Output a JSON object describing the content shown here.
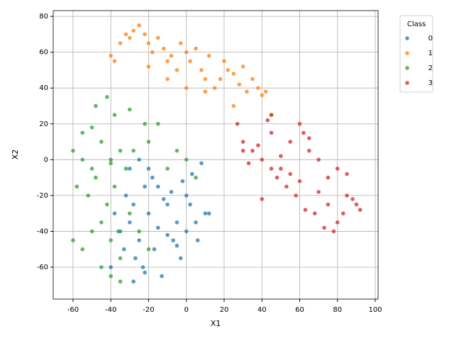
{
  "chart_data": {
    "type": "scatter",
    "xlabel": "X1",
    "ylabel": "X2",
    "xlim": [
      -70.5,
      101.5
    ],
    "ylim": [
      -77.8,
      83.2
    ],
    "xticks": [
      -60,
      -40,
      -20,
      0,
      20,
      40,
      60,
      80,
      100
    ],
    "yticks": [
      -60,
      -40,
      -20,
      0,
      20,
      40,
      60,
      80
    ],
    "grid": true,
    "legend_title": "Class",
    "legend_position": "outside-upper-right",
    "series": [
      {
        "name": "0",
        "color": "#1f77b4",
        "x": [
          -35,
          -30,
          -25,
          -20,
          -15,
          -10,
          -5,
          0,
          5,
          10,
          -32,
          -28,
          -22,
          -18,
          -12,
          -8,
          -2,
          3,
          8,
          -38,
          -33,
          -27,
          -23,
          -17,
          -13,
          -7,
          -3,
          2,
          -30,
          -25,
          -20,
          -15,
          -10,
          -5,
          0,
          -28,
          -22,
          -40,
          12,
          6
        ],
        "values": [
          -40,
          -35,
          -45,
          -30,
          -38,
          -42,
          -48,
          -40,
          -35,
          -30,
          -20,
          -25,
          -15,
          -10,
          -22,
          -18,
          -12,
          -8,
          -2,
          -30,
          -50,
          -55,
          -60,
          -50,
          -65,
          -45,
          -55,
          -25,
          -5,
          0,
          -5,
          -15,
          -25,
          -35,
          -20,
          -68,
          -63,
          -60,
          -30,
          -45
        ]
      },
      {
        "name": "1",
        "color": "#ff7f0e",
        "x": [
          -40,
          -35,
          -32,
          -30,
          -28,
          -25,
          -22,
          -20,
          -18,
          -15,
          -12,
          -10,
          -8,
          -5,
          -3,
          0,
          2,
          5,
          8,
          10,
          12,
          15,
          18,
          20,
          22,
          25,
          28,
          30,
          32,
          35,
          38,
          40,
          42,
          -38,
          -20,
          -10,
          0,
          10,
          25,
          45
        ],
        "values": [
          58,
          65,
          70,
          68,
          72,
          75,
          70,
          65,
          60,
          68,
          62,
          55,
          58,
          50,
          65,
          60,
          55,
          62,
          50,
          45,
          58,
          40,
          45,
          55,
          50,
          48,
          42,
          52,
          38,
          45,
          40,
          36,
          38,
          55,
          52,
          45,
          40,
          38,
          30,
          25
        ]
      },
      {
        "name": "2",
        "color": "#2ca02c",
        "x": [
          -60,
          -55,
          -50,
          -45,
          -40,
          -35,
          -58,
          -52,
          -48,
          -42,
          -38,
          -32,
          -28,
          -60,
          -55,
          -50,
          -45,
          -40,
          -35,
          -30,
          -25,
          -20,
          -45,
          -40,
          -35,
          -48,
          -42,
          -38,
          -30,
          -22,
          -15,
          -10,
          -5,
          0,
          5,
          -55,
          -50,
          -40,
          -36,
          -20
        ],
        "values": [
          5,
          0,
          -5,
          10,
          0,
          5,
          -15,
          -20,
          -10,
          -25,
          -15,
          -5,
          5,
          -45,
          -50,
          -40,
          -35,
          -45,
          -55,
          -30,
          -40,
          -50,
          -60,
          -65,
          -68,
          30,
          35,
          25,
          28,
          20,
          20,
          -5,
          5,
          0,
          -10,
          15,
          18,
          -2,
          -40,
          10
        ]
      },
      {
        "name": "3",
        "color": "#d62728",
        "x": [
          27,
          30,
          35,
          40,
          45,
          50,
          55,
          60,
          65,
          70,
          75,
          80,
          85,
          90,
          33,
          38,
          43,
          48,
          53,
          58,
          63,
          68,
          73,
          78,
          83,
          88,
          45,
          50,
          55,
          60,
          65,
          70,
          75,
          80,
          40,
          45,
          85,
          92,
          30,
          62
        ],
        "values": [
          20,
          10,
          5,
          0,
          15,
          -5,
          10,
          20,
          5,
          0,
          -10,
          -5,
          -20,
          -25,
          -2,
          8,
          22,
          -10,
          -15,
          -20,
          -28,
          -30,
          -38,
          -40,
          -30,
          -22,
          -5,
          2,
          -8,
          -12,
          12,
          -18,
          -25,
          -35,
          -22,
          25,
          -8,
          -28,
          5,
          15
        ]
      }
    ]
  }
}
